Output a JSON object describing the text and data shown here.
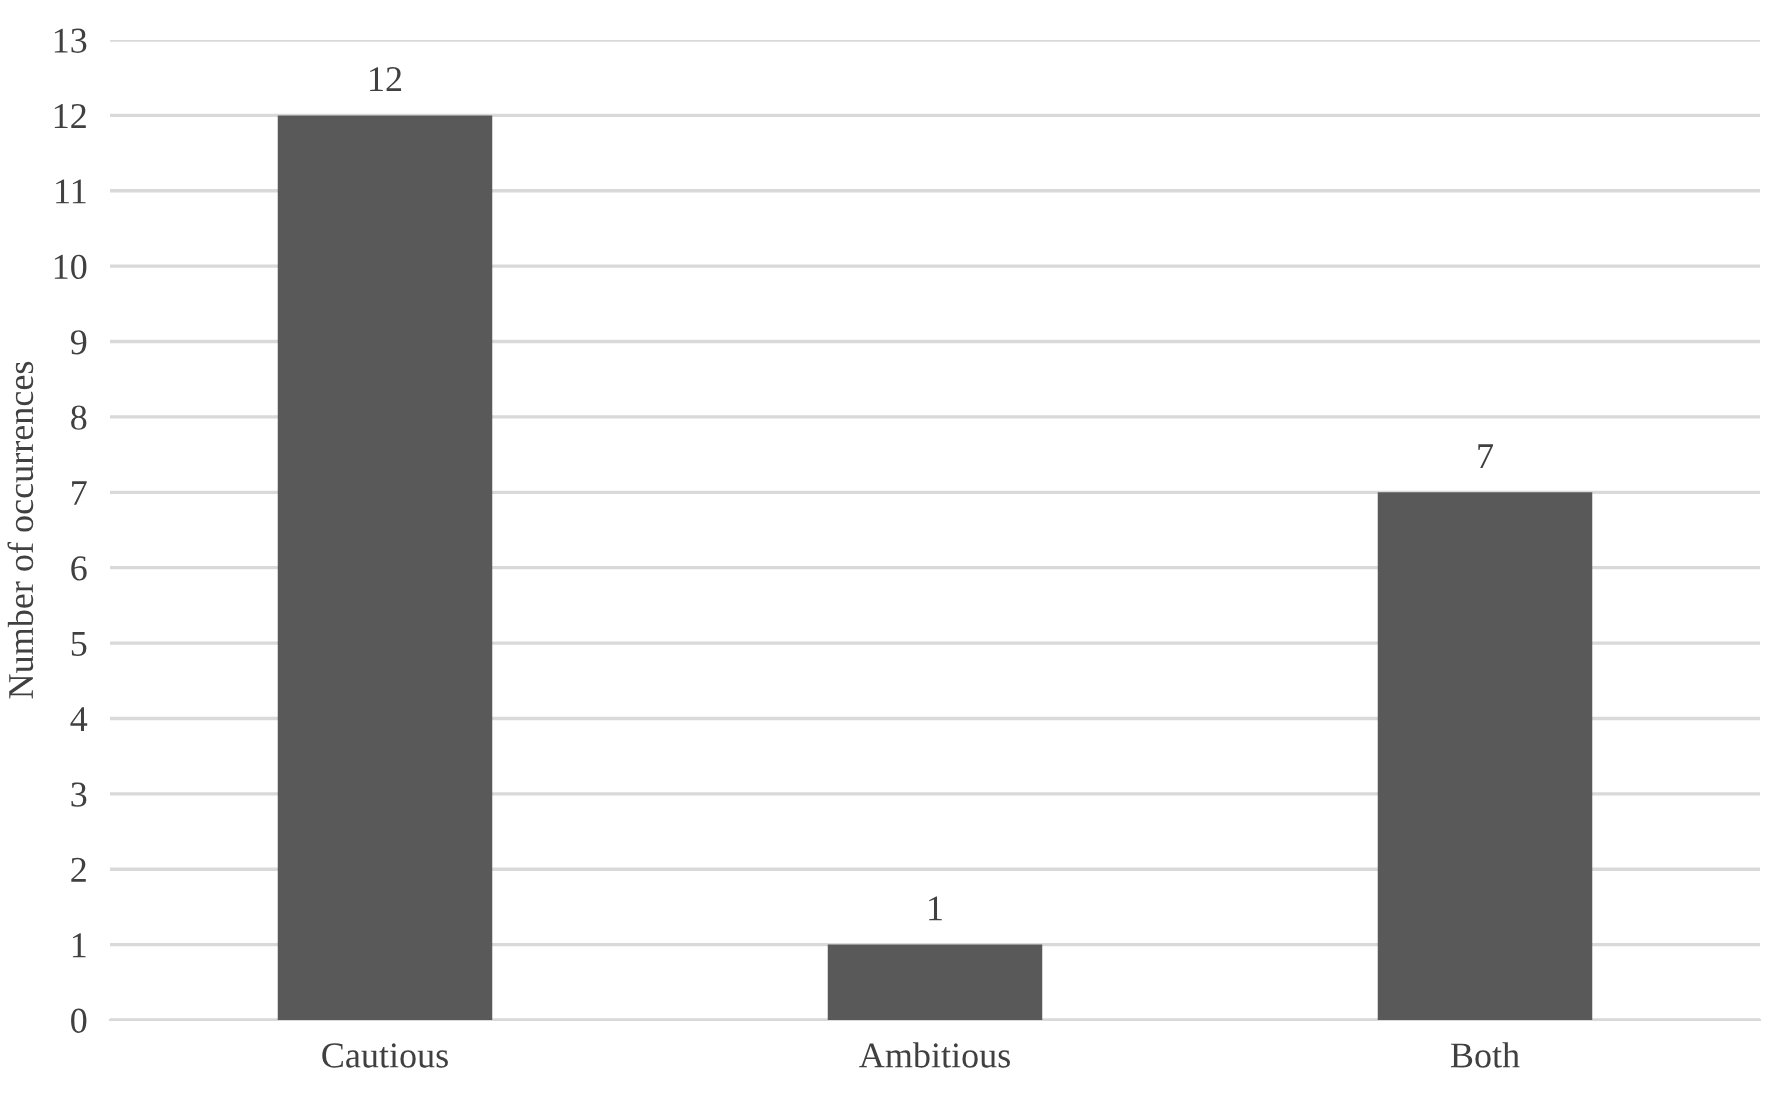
{
  "chart_data": {
    "type": "bar",
    "ylabel": "Number of occurrences",
    "categories": [
      "Cautious",
      "Ambitious",
      "Both"
    ],
    "values": [
      12,
      1,
      7
    ],
    "color": "#595959",
    "ylim": [
      0,
      13
    ],
    "yticks": [
      0,
      1,
      2,
      3,
      4,
      5,
      6,
      7,
      8,
      9,
      10,
      11,
      12,
      13
    ],
    "grid": "y",
    "data_labels": true
  }
}
